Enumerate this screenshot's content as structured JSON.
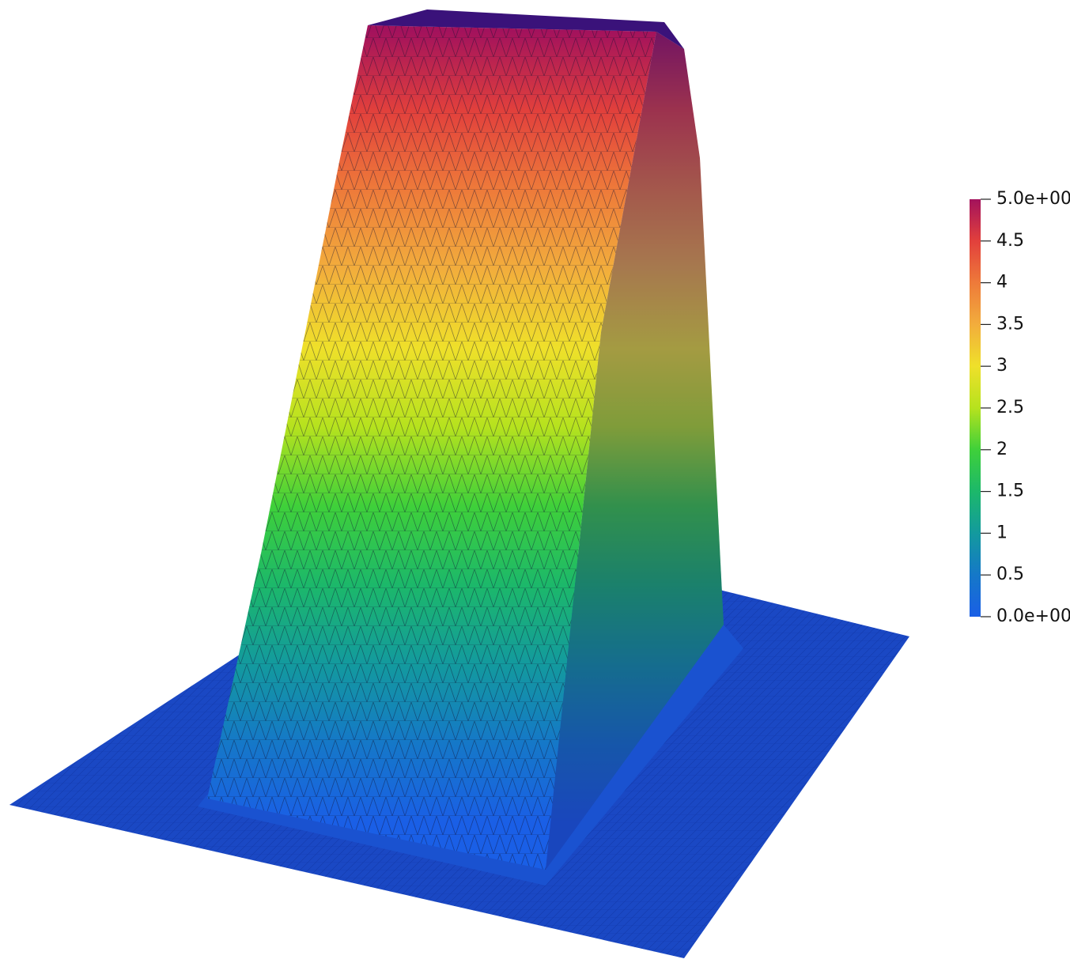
{
  "colorbar": {
    "range": [
      0,
      5
    ],
    "ticks": [
      {
        "value": 5,
        "label": "5.0e+00"
      },
      4.5,
      4,
      3.5,
      3,
      2.5,
      2,
      1.5,
      1,
      0.5,
      {
        "value": 0,
        "label": "0.0e+00"
      }
    ],
    "colors": [
      "#1a5fe6",
      "#1578c8",
      "#139a9e",
      "#1cb86a",
      "#3fd03a",
      "#b6e21e",
      "#efe02a",
      "#f2ad3c",
      "#ee7a3a",
      "#e2403c",
      "#a3125c"
    ]
  }
}
